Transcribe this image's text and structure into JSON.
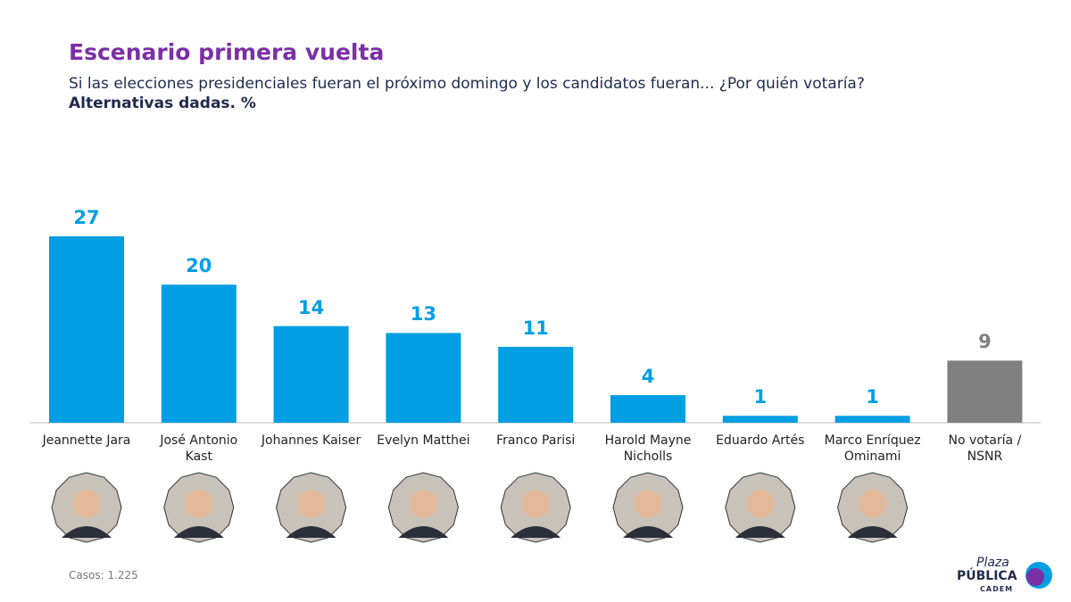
{
  "chart_data": {
    "type": "bar",
    "title": "Escenario primera vuelta",
    "subtitle": "Si las elecciones presidenciales fueran el próximo domingo y los candidatos fueran... ¿Por quién votaría?",
    "note": "Alternativas dadas. %",
    "categories": [
      "Jeannette Jara",
      "José Antonio Kast",
      "Johannes Kaiser",
      "Evelyn Matthei",
      "Franco Parisi",
      "Harold Mayne Nicholls",
      "Eduardo Artés",
      "Marco Enríquez Ominami",
      "No votaría / NSNR"
    ],
    "values": [
      27,
      20,
      14,
      13,
      11,
      4,
      1,
      1,
      9
    ],
    "colors": [
      "#009fe3",
      "#009fe3",
      "#009fe3",
      "#009fe3",
      "#009fe3",
      "#009fe3",
      "#009fe3",
      "#009fe3",
      "#808080"
    ]
  },
  "footer": {
    "cases_label": "Casos:",
    "cases_value": "1.225"
  },
  "logo": {
    "line1": "Plaza",
    "line2": "PÚBLICA",
    "line3": "CADEM"
  }
}
